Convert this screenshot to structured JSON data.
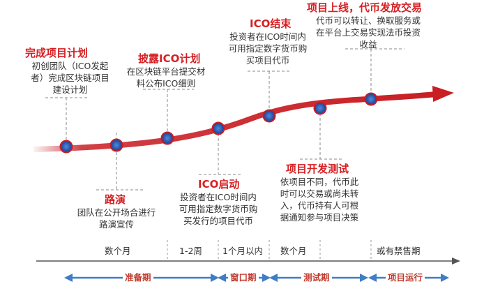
{
  "events": [
    {
      "id": "complete-plan",
      "title": "完成项目计划",
      "lines": [
        "初创团队（ICO发起",
        "者）完成区块链项目",
        "建设计划"
      ]
    },
    {
      "id": "roadshow",
      "title": "路演",
      "lines": [
        "团队在公开场合进行",
        "路演宣传"
      ]
    },
    {
      "id": "disclose-ico",
      "title": "披露ICO计划",
      "lines": [
        "在区块链平台提交材",
        "料公布ICO细则"
      ]
    },
    {
      "id": "ico-start",
      "title": "ICO启动",
      "lines": [
        "投资者在ICO时间内",
        "可用指定数字货币购",
        "买发行的项目代币"
      ]
    },
    {
      "id": "ico-end",
      "title": "ICO结束",
      "lines": [
        "投资者在ICO时间内",
        "可用指定数字货币购",
        "买项目代币"
      ]
    },
    {
      "id": "dev-test",
      "title": "项目开发测试",
      "lines": [
        "依项目不同，代币此",
        "时可以交易或尚未转",
        "入，代币持有人可根",
        "据通知参与项目决策"
      ]
    },
    {
      "id": "launch",
      "title": "项目上线，代币发放交易",
      "lines": [
        "代币可以转让、换取服务或",
        "在平台上交易实现法币投资",
        "收益"
      ]
    }
  ],
  "periods": [
    "数个月",
    "1-2周",
    "1个月以内",
    "数个月",
    "或有禁售期"
  ],
  "phases": [
    "准备期",
    "窗口期",
    "测试期",
    "项目运行"
  ],
  "colors": {
    "curve": "#c81e24",
    "dot": "#2a4fa8",
    "phase_arrow": "#3f7dc4",
    "title": "#d62023"
  }
}
